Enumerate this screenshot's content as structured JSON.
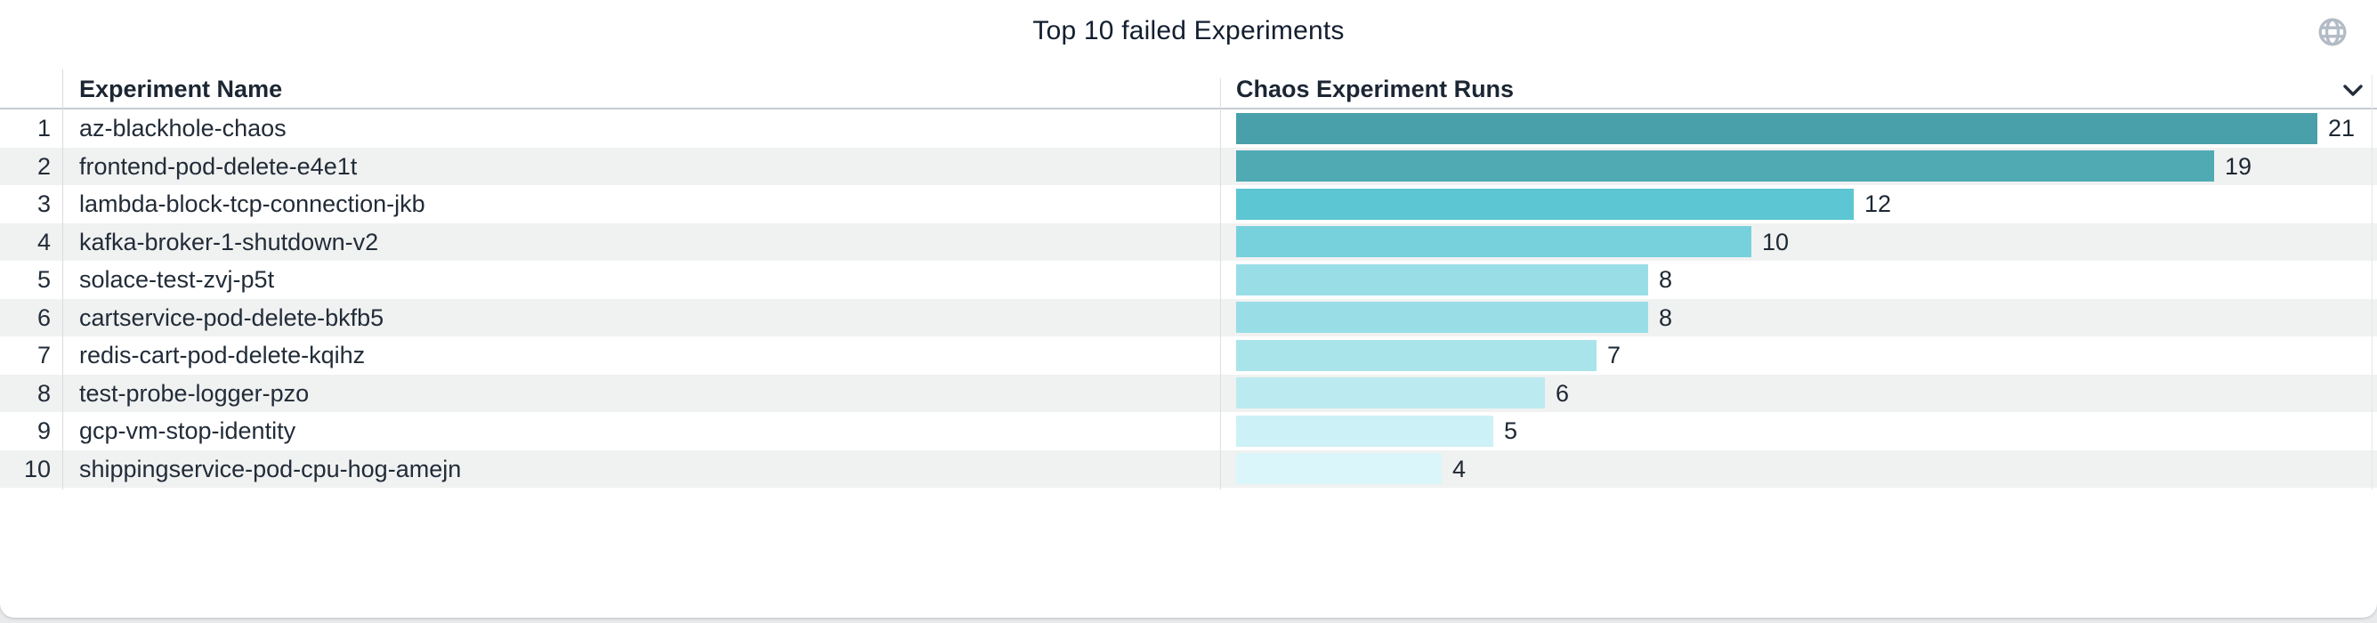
{
  "title": "Top 10 failed Experiments",
  "accent_colors": {
    "bar_darkest": "#49A0AB",
    "bar_lightest": "#DBF6FA",
    "stripe": "#F0F1F1",
    "text": "#222C38",
    "header_underline": "#C6CBD1",
    "globe_icon_color": "#B3BBC6",
    "chevron_color": "#232D3A"
  },
  "icons": {
    "globe": "globe-icon",
    "chevron": "chevron-down-icon"
  },
  "table": {
    "columns": [
      "Experiment Name",
      "Chaos Experiment Runs"
    ],
    "rows": [
      {
        "rank": "1",
        "name": "az-blackhole-chaos",
        "runs": 21,
        "bar_color": "#49A0AB"
      },
      {
        "rank": "2",
        "name": "frontend-pod-delete-e4e1t",
        "runs": 19,
        "bar_color": "#4FAAB4"
      },
      {
        "rank": "3",
        "name": "lambda-block-tcp-connection-jkb",
        "runs": 12,
        "bar_color": "#5CC6D3"
      },
      {
        "rank": "4",
        "name": "kafka-broker-1-shutdown-v2",
        "runs": 10,
        "bar_color": "#77D1DC"
      },
      {
        "rank": "5",
        "name": "solace-test-zvj-p5t",
        "runs": 8,
        "bar_color": "#99DEE7"
      },
      {
        "rank": "6",
        "name": "cartservice-pod-delete-bkfb5",
        "runs": 8,
        "bar_color": "#99DEE7"
      },
      {
        "rank": "7",
        "name": "redis-cart-pod-delete-kqihz",
        "runs": 7,
        "bar_color": "#AAE4EB"
      },
      {
        "rank": "8",
        "name": "test-probe-logger-pzo",
        "runs": 6,
        "bar_color": "#BBEBF0"
      },
      {
        "rank": "9",
        "name": "gcp-vm-stop-identity",
        "runs": 5,
        "bar_color": "#CCF1F6"
      },
      {
        "rank": "10",
        "name": "shippingservice-pod-cpu-hog-amejn",
        "runs": 4,
        "bar_color": "#DBF6FA"
      }
    ]
  },
  "chart_data": {
    "type": "bar",
    "orientation": "horizontal",
    "title": "Top 10 failed Experiments",
    "categories": [
      "az-blackhole-chaos",
      "frontend-pod-delete-e4e1t",
      "lambda-block-tcp-connection-jkb",
      "kafka-broker-1-shutdown-v2",
      "solace-test-zvj-p5t",
      "cartservice-pod-delete-bkfb5",
      "redis-cart-pod-delete-kqihz",
      "test-probe-logger-pzo",
      "gcp-vm-stop-identity",
      "shippingservice-pod-cpu-hog-amejn"
    ],
    "values": [
      21,
      19,
      12,
      10,
      8,
      8,
      7,
      6,
      5,
      4
    ],
    "xlabel": "Chaos Experiment Runs",
    "ylabel": "Experiment Name",
    "xlim": [
      0,
      21
    ],
    "grid": false,
    "legend": false,
    "data_labels": true,
    "color_scale": "sequential teal, darkest = highest value"
  }
}
